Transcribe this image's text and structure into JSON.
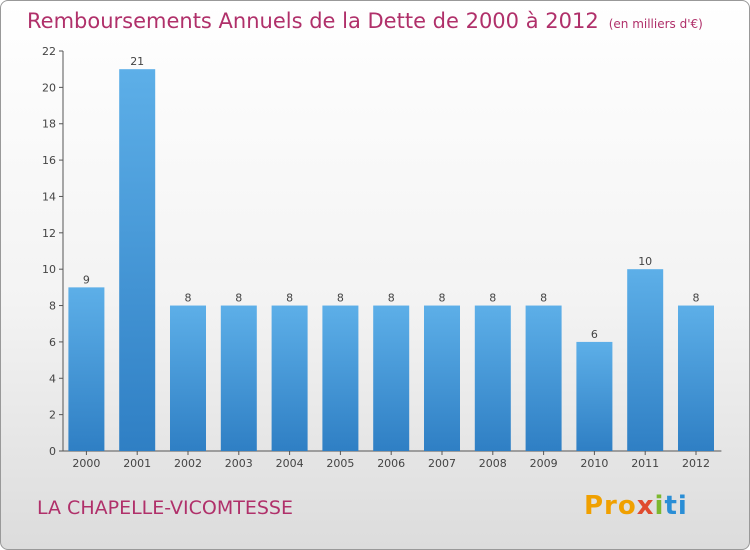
{
  "header": {
    "title": "Remboursements Annuels de la Dette de 2000 à 2012",
    "unit": "(en milliers d'€)"
  },
  "footer": {
    "commune": "LA CHAPELLE-VICOMTESSE",
    "logo": {
      "part1": "Pro",
      "part2": "x",
      "part3": "i",
      "part4": "ti"
    }
  },
  "chart_data": {
    "type": "bar",
    "title": "Remboursements Annuels de la Dette de 2000 à 2012",
    "xlabel": "",
    "ylabel": "",
    "categories": [
      "2000",
      "2001",
      "2002",
      "2003",
      "2004",
      "2005",
      "2006",
      "2007",
      "2008",
      "2009",
      "2010",
      "2011",
      "2012"
    ],
    "values": [
      9,
      21,
      8,
      8,
      8,
      8,
      8,
      8,
      8,
      8,
      6,
      10,
      8
    ],
    "ylim": [
      0,
      22
    ],
    "yticks": [
      0,
      2,
      4,
      6,
      8,
      10,
      12,
      14,
      16,
      18,
      20,
      22
    ],
    "grid": false,
    "legend": "none",
    "colors": {
      "bar_top": "#5dafe8",
      "bar_bottom": "#2f7fc4",
      "accent": "#b0306a"
    }
  }
}
